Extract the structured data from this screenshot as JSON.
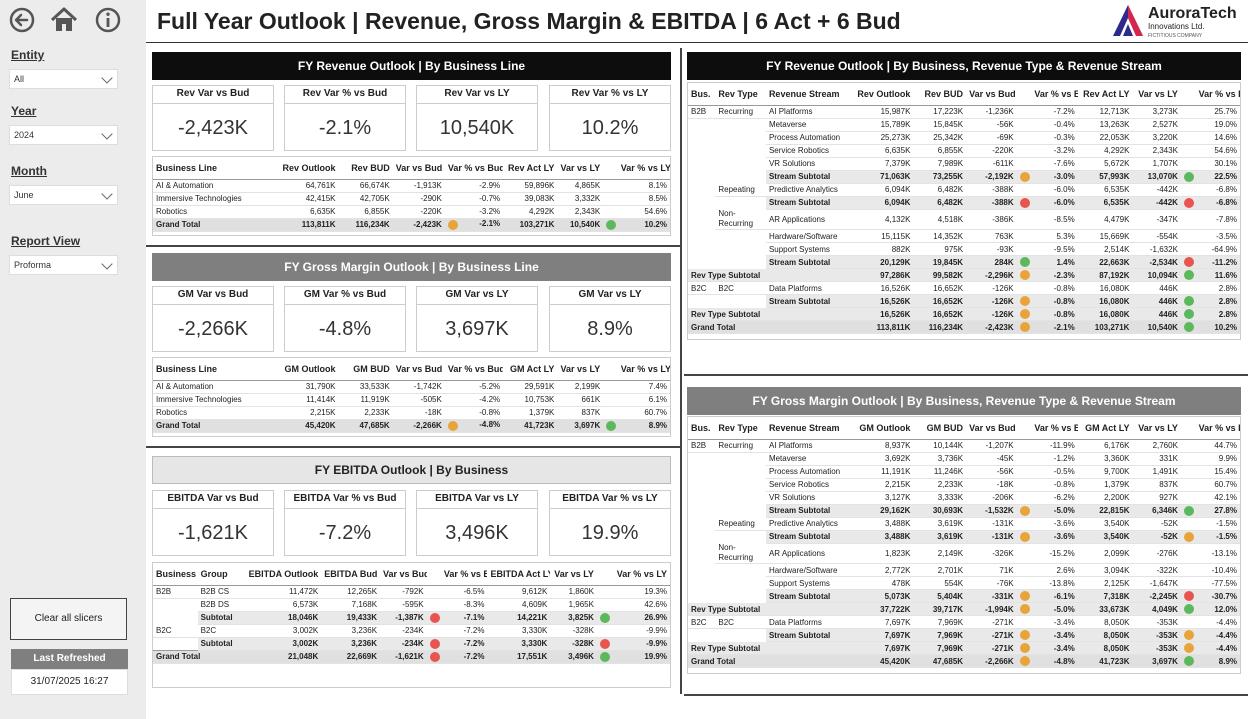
{
  "header": {
    "title": "Full Year Outlook | Revenue, Gross Margin & EBITDA |  6 Act + 6 Bud"
  },
  "logo": {
    "name": "AuroraTech",
    "subtitle": "Innovations Ltd.",
    "tagline": "FICTITIOUS COMPANY"
  },
  "sidebar": {
    "slicers": [
      {
        "title": "Entity",
        "value": "All"
      },
      {
        "title": "Year",
        "value": "2024"
      },
      {
        "title": "Month",
        "value": "June"
      },
      {
        "title": "Report View",
        "value": "Proforma"
      }
    ],
    "clear_button": "Clear all slicers",
    "last_refreshed_label": "Last Refreshed",
    "last_refreshed_value": "31/07/2025 16:27"
  },
  "icons": [
    "back-arrow-icon",
    "home-icon",
    "info-icon"
  ],
  "colors": {
    "red": "#e8554e",
    "amber": "#e8a33a",
    "green": "#5cb85c",
    "dark": "#0d0d0d",
    "grey": "#7f7f7f"
  },
  "revenue": {
    "banner": "FY Revenue Outlook | By Business Line",
    "kpis": [
      {
        "label": "Rev Var vs Bud",
        "value": "-2,423K"
      },
      {
        "label": "Rev Var % vs Bud",
        "value": "-2.1%"
      },
      {
        "label": "Rev Var vs LY",
        "value": "10,540K"
      },
      {
        "label": "Rev Var % vs LY",
        "value": "10.2%"
      }
    ],
    "columns": [
      "Business Line",
      "Rev Outlook",
      "Rev BUD",
      "Var vs Bud",
      "Var % vs Bud",
      "Rev Act LY",
      "Var vs LY",
      "Var % vs LY"
    ],
    "rows": [
      [
        "AI & Automation",
        "64,761K",
        "66,674K",
        "-1,913K",
        "-2.9%",
        "59,896K",
        "4,865K",
        "8.1%"
      ],
      [
        "Immersive Technologies",
        "42,415K",
        "42,705K",
        "-290K",
        "-0.7%",
        "39,083K",
        "3,332K",
        "8.5%"
      ],
      [
        "Robotics",
        "6,635K",
        "6,855K",
        "-220K",
        "-3.2%",
        "4,292K",
        "2,343K",
        "54.6%"
      ]
    ],
    "total": [
      "Grand Total",
      "113,811K",
      "116,234K",
      "-2,423K",
      "-2.1%",
      "103,271K",
      "10,540K",
      "10.2%"
    ],
    "total_dots": [
      "amber",
      "green"
    ]
  },
  "gm": {
    "banner": "FY Gross Margin Outlook | By Business Line",
    "kpis": [
      {
        "label": "GM Var vs Bud",
        "value": "-2,266K"
      },
      {
        "label": "GM Var % vs Bud",
        "value": "-4.8%"
      },
      {
        "label": "GM Var vs LY",
        "value": "3,697K"
      },
      {
        "label": "GM Var vs LY",
        "value": "8.9%"
      }
    ],
    "columns": [
      "Business Line",
      "GM Outlook",
      "GM BUD",
      "Var vs Bud",
      "Var % vs Bud",
      "GM Act LY",
      "Var vs LY",
      "Var % vs LY"
    ],
    "rows": [
      [
        "AI & Automation",
        "31,790K",
        "33,533K",
        "-1,742K",
        "-5.2%",
        "29,591K",
        "2,199K",
        "7.4%"
      ],
      [
        "Immersive Technologies",
        "11,414K",
        "11,919K",
        "-505K",
        "-4.2%",
        "10,753K",
        "661K",
        "6.1%"
      ],
      [
        "Robotics",
        "2,215K",
        "2,233K",
        "-18K",
        "-0.8%",
        "1,379K",
        "837K",
        "60.7%"
      ]
    ],
    "total": [
      "Grand Total",
      "45,420K",
      "47,685K",
      "-2,266K",
      "-4.8%",
      "41,723K",
      "3,697K",
      "8.9%"
    ],
    "total_dots": [
      "amber",
      "green"
    ]
  },
  "ebitda": {
    "banner": "FY EBITDA Outlook | By Business",
    "kpis": [
      {
        "label": "EBITDA Var vs Bud",
        "value": "-1,621K"
      },
      {
        "label": "EBITDA Var % vs Bud",
        "value": "-7.2%"
      },
      {
        "label": "EBITDA Var vs LY",
        "value": "3,496K"
      },
      {
        "label": "EBITDA Var % vs LY",
        "value": "19.9%"
      }
    ],
    "columns": [
      "Business",
      "Group",
      "EBITDA Outlook",
      "EBITDA Bud",
      "Var vs Bud",
      "Var % vs Bud",
      "EBITDA Act LY",
      "Var vs LY",
      "Var % vs LY"
    ],
    "rows": [
      {
        "cells": [
          "B2B",
          "B2B CS",
          "11,472K",
          "12,265K",
          "-792K",
          "",
          "-6.5%",
          "9,612K",
          "1,860K",
          "",
          "19.3%"
        ],
        "type": "row"
      },
      {
        "cells": [
          "",
          "B2B DS",
          "6,573K",
          "7,168K",
          "-595K",
          "",
          "-8.3%",
          "4,609K",
          "1,965K",
          "",
          "42.6%"
        ],
        "type": "row"
      },
      {
        "cells": [
          "",
          "Subtotal",
          "18,046K",
          "19,433K",
          "-1,387K",
          "red",
          "-7.1%",
          "14,221K",
          "3,825K",
          "green",
          "26.9%"
        ],
        "type": "sub"
      },
      {
        "cells": [
          "B2C",
          "B2C",
          "3,002K",
          "3,236K",
          "-234K",
          "",
          "-7.2%",
          "3,330K",
          "-328K",
          "",
          "-9.9%"
        ],
        "type": "row"
      },
      {
        "cells": [
          "",
          "Subtotal",
          "3,002K",
          "3,236K",
          "-234K",
          "red",
          "-7.2%",
          "3,330K",
          "-328K",
          "red",
          "-9.9%"
        ],
        "type": "sub"
      },
      {
        "cells": [
          "Grand Total",
          "",
          "21,048K",
          "22,669K",
          "-1,621K",
          "red",
          "-7.2%",
          "17,551K",
          "3,496K",
          "green",
          "19.9%"
        ],
        "type": "total"
      }
    ]
  },
  "rev_detail": {
    "banner": "FY Revenue Outlook | By Business, Revenue Type & Revenue Stream",
    "columns": [
      "Bus.",
      "Rev Type",
      "Revenue Stream",
      "Rev Outlook",
      "Rev BUD",
      "Var vs Bud",
      "Var % vs Bud",
      "Rev Act LY",
      "Var vs LY",
      "Var % vs LY"
    ],
    "rows": [
      {
        "cells": [
          "B2B",
          "Recurring",
          "AI Platforms",
          "15,987K",
          "17,223K",
          "-1,236K",
          "",
          "-7.2%",
          "12,713K",
          "3,273K",
          "",
          "25.7%"
        ],
        "type": "row"
      },
      {
        "cells": [
          "",
          "",
          "Metaverse",
          "15,789K",
          "15,845K",
          "-56K",
          "",
          "-0.4%",
          "13,263K",
          "2,527K",
          "",
          "19.0%"
        ],
        "type": "row"
      },
      {
        "cells": [
          "",
          "",
          "Process Automation",
          "25,273K",
          "25,342K",
          "-69K",
          "",
          "-0.3%",
          "22,053K",
          "3,220K",
          "",
          "14.6%"
        ],
        "type": "row"
      },
      {
        "cells": [
          "",
          "",
          "Service Robotics",
          "6,635K",
          "6,855K",
          "-220K",
          "",
          "-3.2%",
          "4,292K",
          "2,343K",
          "",
          "54.6%"
        ],
        "type": "row"
      },
      {
        "cells": [
          "",
          "",
          "VR Solutions",
          "7,379K",
          "7,989K",
          "-611K",
          "",
          "-7.6%",
          "5,672K",
          "1,707K",
          "",
          "30.1%"
        ],
        "type": "row"
      },
      {
        "cells": [
          "",
          "",
          "Stream Subtotal",
          "71,063K",
          "73,255K",
          "-2,192K",
          "amber",
          "-3.0%",
          "57,993K",
          "13,070K",
          "green",
          "22.5%"
        ],
        "type": "sub"
      },
      {
        "cells": [
          "",
          "Repeating",
          "Predictive Analytics",
          "6,094K",
          "6,482K",
          "-388K",
          "",
          "-6.0%",
          "6,535K",
          "-442K",
          "",
          "-6.8%"
        ],
        "type": "row"
      },
      {
        "cells": [
          "",
          "",
          "Stream Subtotal",
          "6,094K",
          "6,482K",
          "-388K",
          "red",
          "-6.0%",
          "6,535K",
          "-442K",
          "red",
          "-6.8%"
        ],
        "type": "sub"
      },
      {
        "cells": [
          "",
          "Non-\nRecurring",
          "AR Applications",
          "4,132K",
          "4,518K",
          "-386K",
          "",
          "-8.5%",
          "4,479K",
          "-347K",
          "",
          "-7.8%"
        ],
        "type": "row"
      },
      {
        "cells": [
          "",
          "",
          "Hardware/Software",
          "15,115K",
          "14,352K",
          "763K",
          "",
          "5.3%",
          "15,669K",
          "-554K",
          "",
          "-3.5%"
        ],
        "type": "row"
      },
      {
        "cells": [
          "",
          "",
          "Support Systems",
          "882K",
          "975K",
          "-93K",
          "",
          "-9.5%",
          "2,514K",
          "-1,632K",
          "",
          "-64.9%"
        ],
        "type": "row"
      },
      {
        "cells": [
          "",
          "",
          "Stream Subtotal",
          "20,129K",
          "19,845K",
          "284K",
          "green",
          "1.4%",
          "22,663K",
          "-2,534K",
          "red",
          "-11.2%"
        ],
        "type": "sub"
      },
      {
        "cells": [
          "Rev Type Subtotal",
          "",
          "",
          "97,286K",
          "99,582K",
          "-2,296K",
          "amber",
          "-2.3%",
          "87,192K",
          "10,094K",
          "green",
          "11.6%"
        ],
        "type": "sub"
      },
      {
        "cells": [
          "B2C",
          "B2C",
          "Data Platforms",
          "16,526K",
          "16,652K",
          "-126K",
          "",
          "-0.8%",
          "16,080K",
          "446K",
          "",
          "2.8%"
        ],
        "type": "row"
      },
      {
        "cells": [
          "",
          "",
          "Stream Subtotal",
          "16,526K",
          "16,652K",
          "-126K",
          "amber",
          "-0.8%",
          "16,080K",
          "446K",
          "green",
          "2.8%"
        ],
        "type": "sub"
      },
      {
        "cells": [
          "Rev Type Subtotal",
          "",
          "",
          "16,526K",
          "16,652K",
          "-126K",
          "amber",
          "-0.8%",
          "16,080K",
          "446K",
          "green",
          "2.8%"
        ],
        "type": "sub"
      },
      {
        "cells": [
          "Grand Total",
          "",
          "",
          "113,811K",
          "116,234K",
          "-2,423K",
          "amber",
          "-2.1%",
          "103,271K",
          "10,540K",
          "green",
          "10.2%"
        ],
        "type": "total"
      }
    ]
  },
  "gm_detail": {
    "banner": "FY Gross Margin Outlook | By Business, Revenue Type & Revenue Stream",
    "columns": [
      "Bus.",
      "Rev Type",
      "Revenue Stream",
      "GM Outlook",
      "GM BUD",
      "Var vs Bud",
      "Var % vs Bud",
      "GM Act LY",
      "Var vs LY",
      "Var % vs LY"
    ],
    "rows": [
      {
        "cells": [
          "B2B",
          "Recurring",
          "AI Platforms",
          "8,937K",
          "10,144K",
          "-1,207K",
          "",
          "-11.9%",
          "6,176K",
          "2,760K",
          "",
          "44.7%"
        ],
        "type": "row"
      },
      {
        "cells": [
          "",
          "",
          "Metaverse",
          "3,692K",
          "3,736K",
          "-45K",
          "",
          "-1.2%",
          "3,360K",
          "331K",
          "",
          "9.9%"
        ],
        "type": "row"
      },
      {
        "cells": [
          "",
          "",
          "Process Automation",
          "11,191K",
          "11,246K",
          "-56K",
          "",
          "-0.5%",
          "9,700K",
          "1,491K",
          "",
          "15.4%"
        ],
        "type": "row"
      },
      {
        "cells": [
          "",
          "",
          "Service Robotics",
          "2,215K",
          "2,233K",
          "-18K",
          "",
          "-0.8%",
          "1,379K",
          "837K",
          "",
          "60.7%"
        ],
        "type": "row"
      },
      {
        "cells": [
          "",
          "",
          "VR Solutions",
          "3,127K",
          "3,333K",
          "-206K",
          "",
          "-6.2%",
          "2,200K",
          "927K",
          "",
          "42.1%"
        ],
        "type": "row"
      },
      {
        "cells": [
          "",
          "",
          "Stream Subtotal",
          "29,162K",
          "30,693K",
          "-1,532K",
          "amber",
          "-5.0%",
          "22,815K",
          "6,346K",
          "green",
          "27.8%"
        ],
        "type": "sub"
      },
      {
        "cells": [
          "",
          "Repeating",
          "Predictive Analytics",
          "3,488K",
          "3,619K",
          "-131K",
          "",
          "-3.6%",
          "3,540K",
          "-52K",
          "",
          "-1.5%"
        ],
        "type": "row"
      },
      {
        "cells": [
          "",
          "",
          "Stream Subtotal",
          "3,488K",
          "3,619K",
          "-131K",
          "amber",
          "-3.6%",
          "3,540K",
          "-52K",
          "amber",
          "-1.5%"
        ],
        "type": "sub"
      },
      {
        "cells": [
          "",
          "Non-\nRecurring",
          "AR Applications",
          "1,823K",
          "2,149K",
          "-326K",
          "",
          "-15.2%",
          "2,099K",
          "-276K",
          "",
          "-13.1%"
        ],
        "type": "row"
      },
      {
        "cells": [
          "",
          "",
          "Hardware/Software",
          "2,772K",
          "2,701K",
          "71K",
          "",
          "2.6%",
          "3,094K",
          "-322K",
          "",
          "-10.4%"
        ],
        "type": "row"
      },
      {
        "cells": [
          "",
          "",
          "Support Systems",
          "478K",
          "554K",
          "-76K",
          "",
          "-13.8%",
          "2,125K",
          "-1,647K",
          "",
          "-77.5%"
        ],
        "type": "row"
      },
      {
        "cells": [
          "",
          "",
          "Stream Subtotal",
          "5,073K",
          "5,404K",
          "-331K",
          "amber",
          "-6.1%",
          "7,318K",
          "-2,245K",
          "red",
          "-30.7%"
        ],
        "type": "sub"
      },
      {
        "cells": [
          "Rev Type Subtotal",
          "",
          "",
          "37,722K",
          "39,717K",
          "-1,994K",
          "amber",
          "-5.0%",
          "33,673K",
          "4,049K",
          "green",
          "12.0%"
        ],
        "type": "sub"
      },
      {
        "cells": [
          "B2C",
          "B2C",
          "Data Platforms",
          "7,697K",
          "7,969K",
          "-271K",
          "",
          "-3.4%",
          "8,050K",
          "-353K",
          "",
          "-4.4%"
        ],
        "type": "row"
      },
      {
        "cells": [
          "",
          "",
          "Stream Subtotal",
          "7,697K",
          "7,969K",
          "-271K",
          "amber",
          "-3.4%",
          "8,050K",
          "-353K",
          "amber",
          "-4.4%"
        ],
        "type": "sub"
      },
      {
        "cells": [
          "Rev Type Subtotal",
          "",
          "",
          "7,697K",
          "7,969K",
          "-271K",
          "amber",
          "-3.4%",
          "8,050K",
          "-353K",
          "amber",
          "-4.4%"
        ],
        "type": "sub"
      },
      {
        "cells": [
          "Grand Total",
          "",
          "",
          "45,420K",
          "47,685K",
          "-2,266K",
          "amber",
          "-4.8%",
          "41,723K",
          "3,697K",
          "green",
          "8.9%"
        ],
        "type": "total"
      }
    ]
  }
}
